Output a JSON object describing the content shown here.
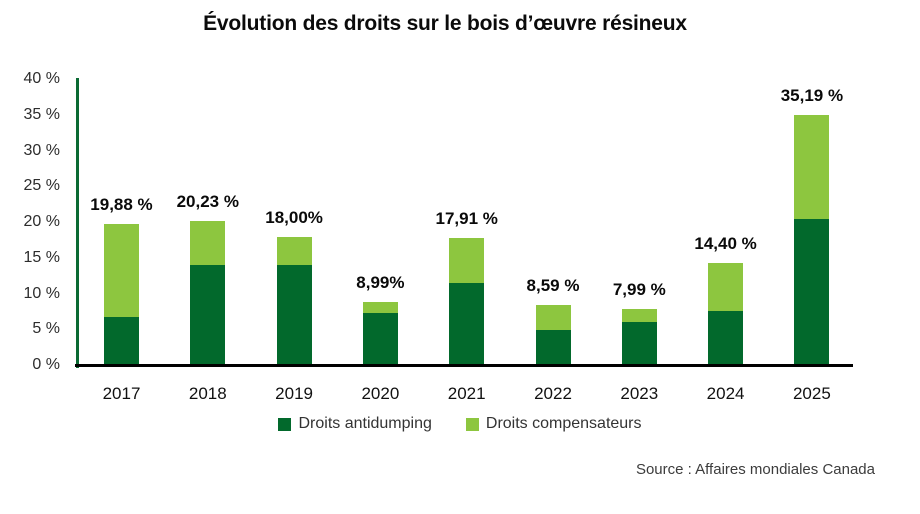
{
  "title": "Évolution des droits sur le bois d’œuvre résineux",
  "source": "Source : Affaires mondiales Canada",
  "colors": {
    "antidumping": "#02692C",
    "compensateurs": "#8DC63F",
    "y_axis_line": "#0B6A33",
    "x_axis_line": "#000000",
    "background": "#FFFFFF"
  },
  "legend": [
    {
      "label": "Droits antidumping",
      "color": "#02692C"
    },
    {
      "label": "Droits compensateurs",
      "color": "#8DC63F"
    }
  ],
  "chart_data": {
    "type": "bar",
    "stacked": true,
    "title": "Évolution des droits sur le bois d’œuvre résineux",
    "xlabel": "",
    "ylabel": "",
    "categories": [
      "2017",
      "2018",
      "2019",
      "2020",
      "2021",
      "2022",
      "2023",
      "2024",
      "2025"
    ],
    "series": [
      {
        "name": "Droits antidumping",
        "color": "#02692C",
        "values": [
          6.87,
          14.19,
          14.19,
          7.42,
          11.59,
          4.97,
          6.2,
          7.66,
          20.56
        ]
      },
      {
        "name": "Droits compensateurs",
        "color": "#8DC63F",
        "values": [
          13.01,
          6.04,
          3.81,
          1.57,
          6.32,
          3.62,
          1.79,
          6.74,
          14.63
        ]
      }
    ],
    "totals": [
      19.88,
      20.23,
      18.0,
      8.99,
      17.91,
      8.59,
      7.99,
      14.4,
      35.19
    ],
    "total_labels": [
      "19,88 %",
      "20,23 %",
      "18,00%",
      "8,99%",
      "17,91 %",
      "8,59 %",
      "7,99 %",
      "14,40 %",
      "35,19 %"
    ],
    "y_ticks": [
      "40 %",
      "35 %",
      "30 %",
      "25 %",
      "20 %",
      "15 %",
      "10 %",
      "5 %",
      "0 %"
    ],
    "ylim": [
      0,
      40
    ],
    "y_tick_step": 5,
    "grid": false,
    "legend_position": "bottom"
  }
}
